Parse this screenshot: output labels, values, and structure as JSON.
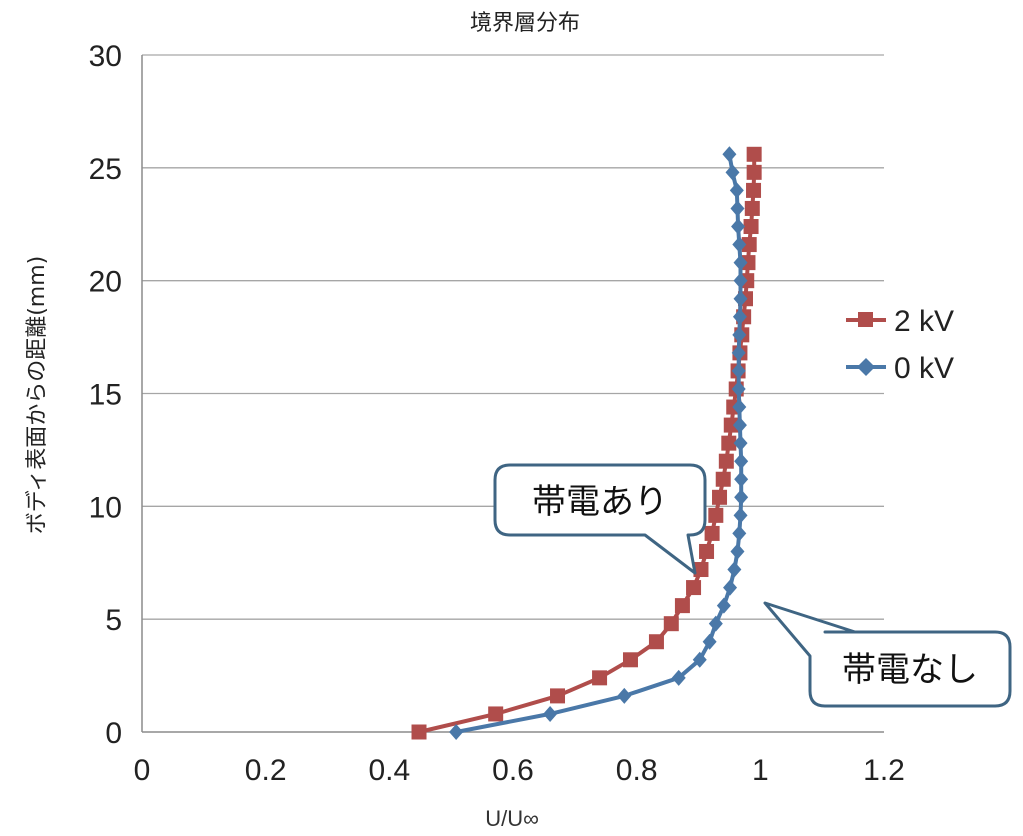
{
  "chart_data": {
    "type": "line",
    "title": "境界層分布",
    "xlabel": "U/U∞",
    "ylabel": "ボディ表面からの距離(mm)",
    "xlim": [
      0,
      1.2
    ],
    "ylim": [
      0,
      30
    ],
    "xticks": [
      "0",
      "0.2",
      "0.4",
      "0.6",
      "0.8",
      "1",
      "1.2"
    ],
    "yticks": [
      "0",
      "5",
      "10",
      "15",
      "20",
      "25",
      "30"
    ],
    "grid": "horizontal",
    "legend_position": "right",
    "series": [
      {
        "name": "2 kV",
        "color": "#b04d4b",
        "marker": "square",
        "points": [
          [
            0.448,
            0.0
          ],
          [
            0.572,
            0.8
          ],
          [
            0.672,
            1.6
          ],
          [
            0.74,
            2.4
          ],
          [
            0.79,
            3.2
          ],
          [
            0.832,
            4.0
          ],
          [
            0.856,
            4.8
          ],
          [
            0.874,
            5.6
          ],
          [
            0.892,
            6.4
          ],
          [
            0.904,
            7.2
          ],
          [
            0.913,
            8.0
          ],
          [
            0.922,
            8.8
          ],
          [
            0.928,
            9.6
          ],
          [
            0.934,
            10.4
          ],
          [
            0.94,
            11.2
          ],
          [
            0.945,
            12.0
          ],
          [
            0.949,
            12.8
          ],
          [
            0.953,
            13.6
          ],
          [
            0.957,
            14.4
          ],
          [
            0.961,
            15.2
          ],
          [
            0.964,
            16.0
          ],
          [
            0.967,
            16.8
          ],
          [
            0.97,
            17.6
          ],
          [
            0.973,
            18.4
          ],
          [
            0.976,
            19.2
          ],
          [
            0.978,
            20.0
          ],
          [
            0.98,
            20.8
          ],
          [
            0.982,
            21.6
          ],
          [
            0.985,
            22.4
          ],
          [
            0.987,
            23.2
          ],
          [
            0.989,
            24.0
          ],
          [
            0.99,
            24.8
          ],
          [
            0.99,
            25.6
          ]
        ]
      },
      {
        "name": "0 kV",
        "color": "#4a78a8",
        "marker": "diamond",
        "points": [
          [
            0.508,
            0.0
          ],
          [
            0.66,
            0.8
          ],
          [
            0.78,
            1.6
          ],
          [
            0.868,
            2.4
          ],
          [
            0.902,
            3.2
          ],
          [
            0.918,
            4.0
          ],
          [
            0.928,
            4.8
          ],
          [
            0.941,
            5.6
          ],
          [
            0.951,
            6.4
          ],
          [
            0.958,
            7.2
          ],
          [
            0.963,
            8.0
          ],
          [
            0.966,
            8.8
          ],
          [
            0.968,
            9.6
          ],
          [
            0.969,
            10.4
          ],
          [
            0.969,
            11.2
          ],
          [
            0.969,
            12.0
          ],
          [
            0.968,
            12.8
          ],
          [
            0.967,
            13.6
          ],
          [
            0.966,
            14.4
          ],
          [
            0.965,
            15.2
          ],
          [
            0.965,
            16.0
          ],
          [
            0.965,
            16.8
          ],
          [
            0.966,
            17.6
          ],
          [
            0.967,
            18.4
          ],
          [
            0.968,
            19.2
          ],
          [
            0.968,
            20.0
          ],
          [
            0.968,
            20.8
          ],
          [
            0.966,
            21.6
          ],
          [
            0.964,
            22.4
          ],
          [
            0.963,
            23.2
          ],
          [
            0.962,
            24.0
          ],
          [
            0.955,
            24.8
          ],
          [
            0.95,
            25.6
          ]
        ]
      }
    ],
    "annotations": [
      {
        "text": "帯電あり",
        "target_series": "2 kV"
      },
      {
        "text": "帯電なし",
        "target_series": "0 kV"
      }
    ]
  }
}
